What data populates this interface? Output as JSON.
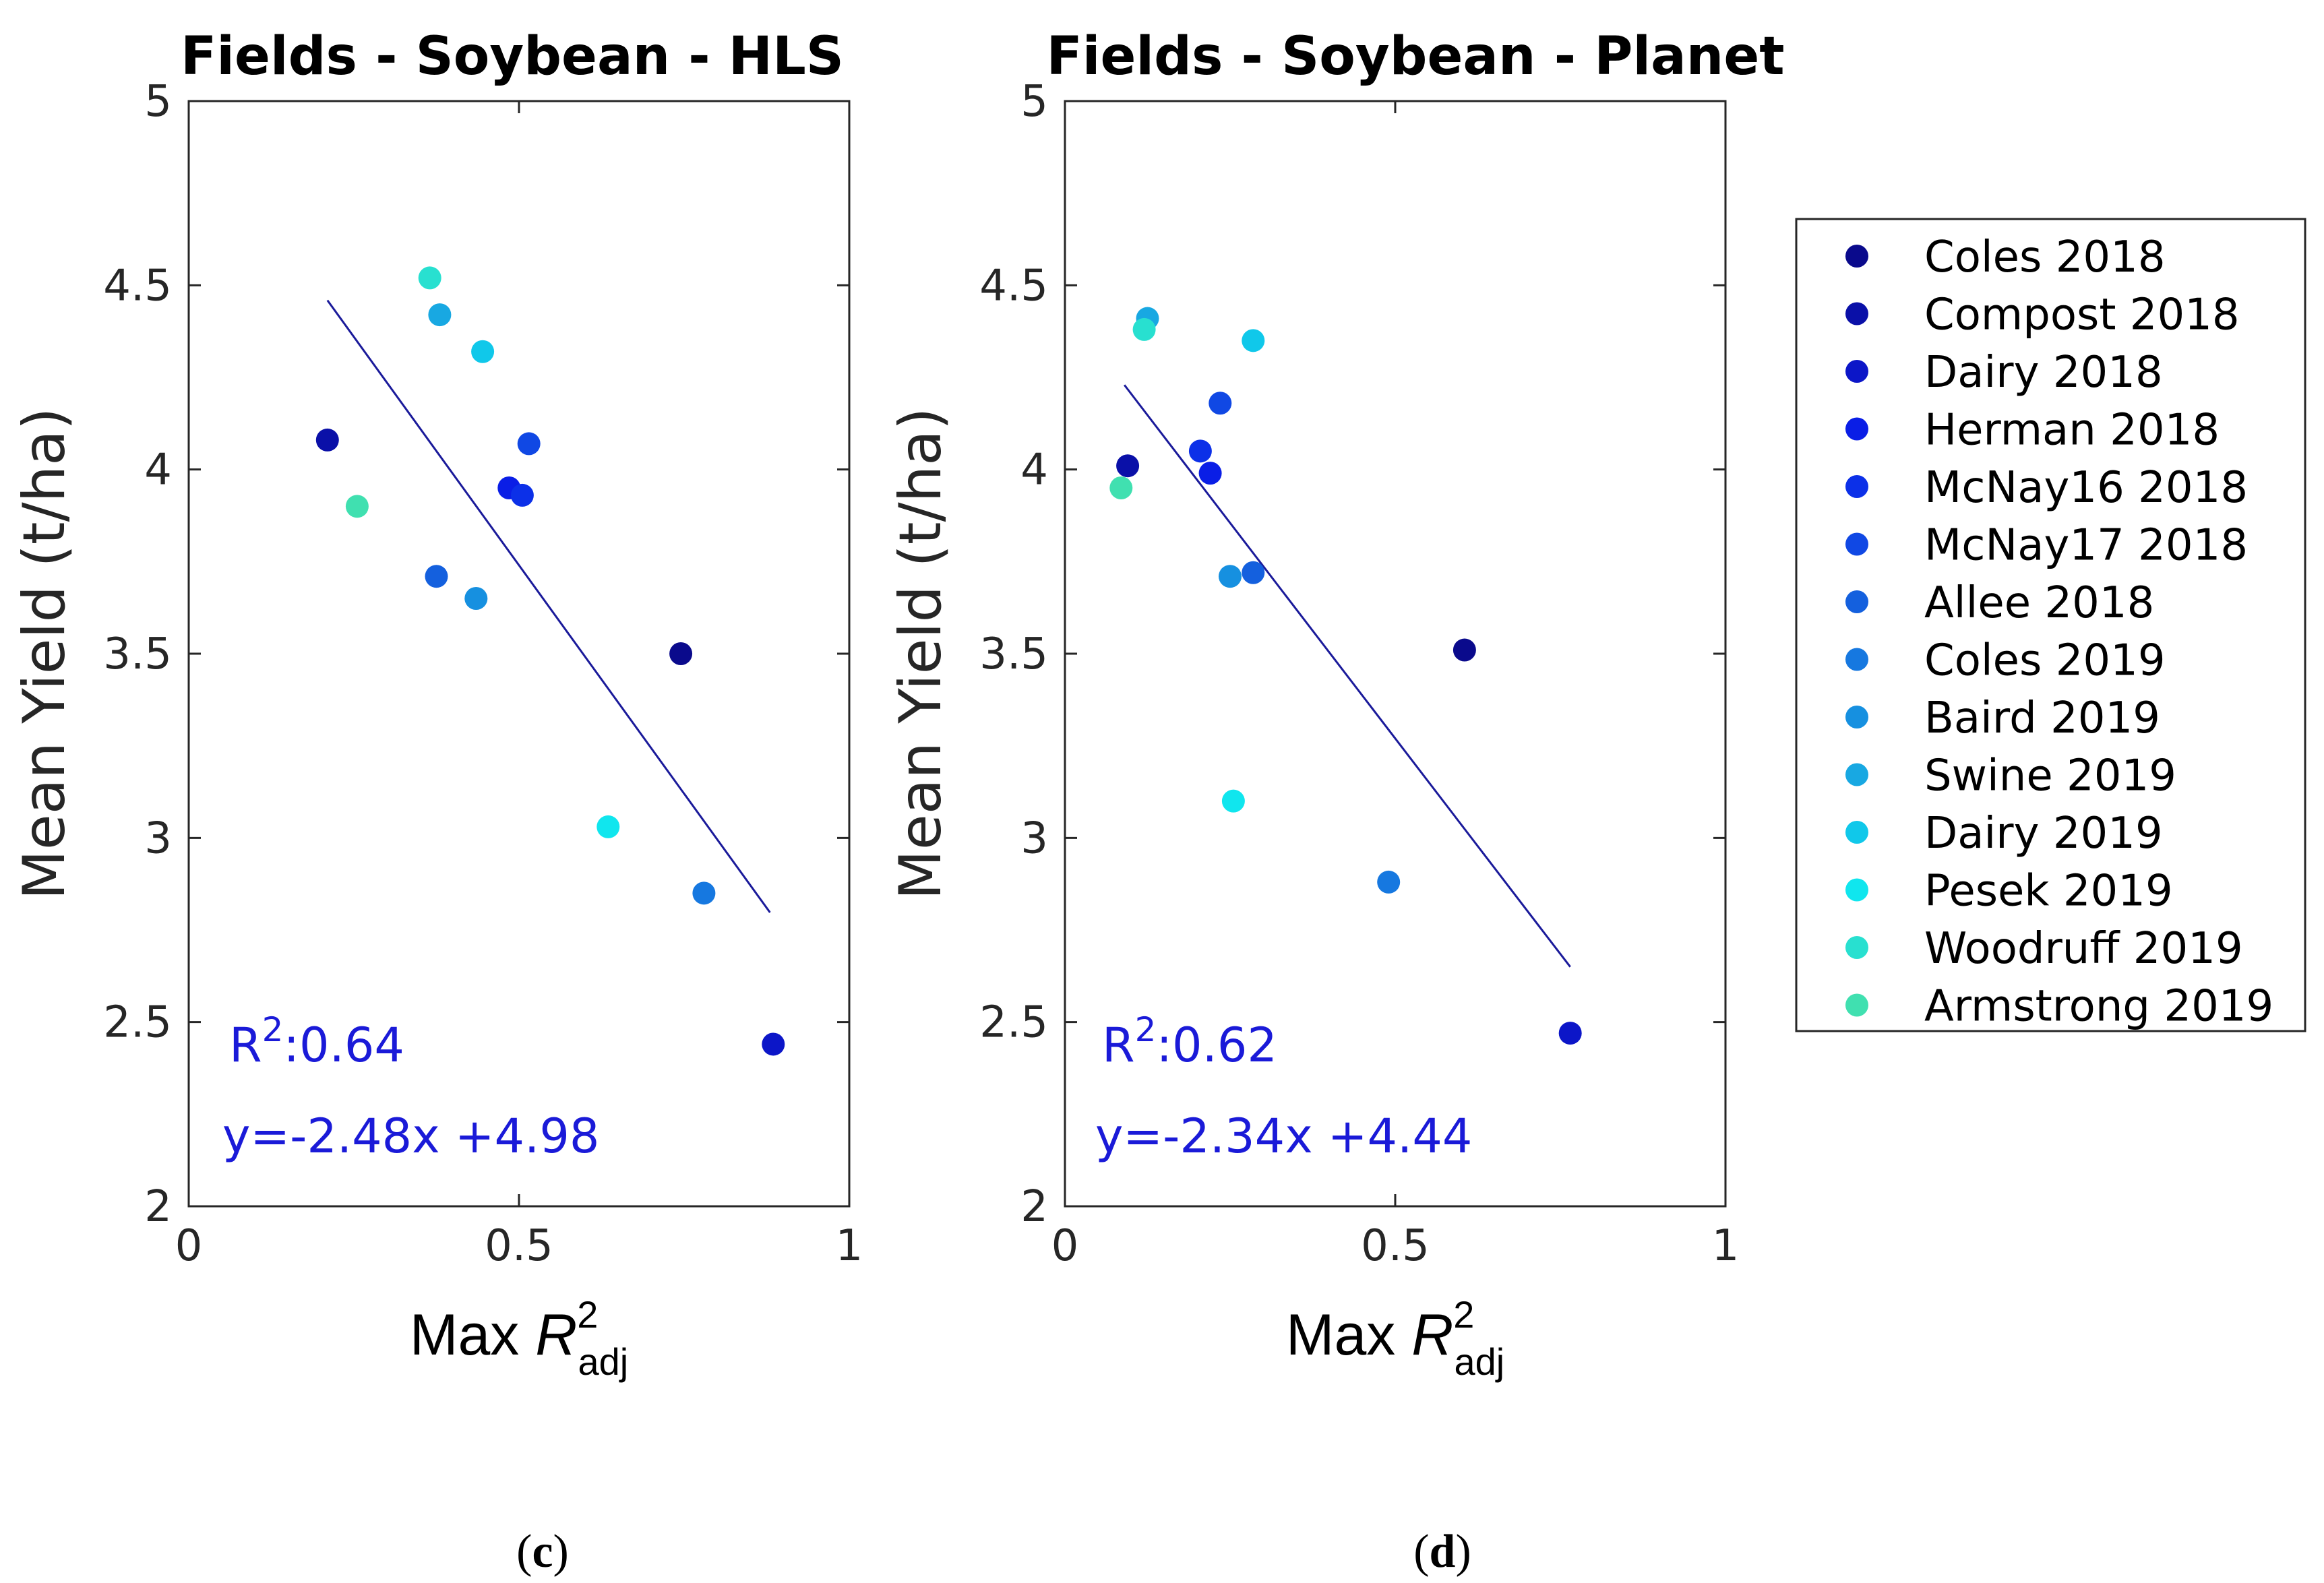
{
  "chart_data": [
    {
      "type": "scatter",
      "title": "Fields - Soybean - HLS",
      "panel_label": "c",
      "ylabel": "Mean Yield (t/ha)",
      "xlabel": "Max R2adj",
      "xlim": [
        0,
        1
      ],
      "ylim": [
        2,
        5
      ],
      "xticks": [
        "0",
        "0.5",
        "1"
      ],
      "yticks": [
        "2",
        "2.5",
        "3",
        "3.5",
        "4",
        "4.5",
        "5"
      ],
      "r2_text": "0.64",
      "equation": "y=-2.48x +4.98",
      "fit": {
        "slope": -2.48,
        "intercept": 4.98,
        "x_range": [
          0.21,
          0.88
        ]
      },
      "points": [
        {
          "series": "Coles 2018",
          "x": 0.745,
          "y": 3.5
        },
        {
          "series": "Compost 2018",
          "x": 0.21,
          "y": 4.08
        },
        {
          "series": "Dairy 2018",
          "x": 0.885,
          "y": 2.44
        },
        {
          "series": "Herman 2018",
          "x": 0.485,
          "y": 3.95
        },
        {
          "series": "McNay16 2018",
          "x": 0.505,
          "y": 3.93
        },
        {
          "series": "McNay17 2018",
          "x": 0.515,
          "y": 4.07
        },
        {
          "series": "Allee 2018",
          "x": 0.375,
          "y": 3.71
        },
        {
          "series": "Coles 2019",
          "x": 0.78,
          "y": 2.85
        },
        {
          "series": "Baird 2019",
          "x": 0.435,
          "y": 3.65
        },
        {
          "series": "Swine 2019",
          "x": 0.38,
          "y": 4.42
        },
        {
          "series": "Dairy 2019",
          "x": 0.445,
          "y": 4.32
        },
        {
          "series": "Pesek 2019",
          "x": 0.635,
          "y": 3.03
        },
        {
          "series": "Woodruff 2019",
          "x": 0.365,
          "y": 4.52
        },
        {
          "series": "Armstrong 2019",
          "x": 0.255,
          "y": 3.9
        }
      ]
    },
    {
      "type": "scatter",
      "title": "Fields - Soybean - Planet",
      "panel_label": "d",
      "ylabel": "Mean Yield (t/ha)",
      "xlabel": "Max R2adj",
      "xlim": [
        0,
        1
      ],
      "ylim": [
        2,
        5
      ],
      "xticks": [
        "0",
        "0.5",
        "1"
      ],
      "yticks": [
        "2",
        "2.5",
        "3",
        "3.5",
        "4",
        "4.5",
        "5"
      ],
      "r2_text": "0.62",
      "equation": "y=-2.34x +4.44",
      "fit": {
        "slope": -2.34,
        "intercept": 4.44,
        "x_range": [
          0.09,
          0.765
        ]
      },
      "points": [
        {
          "series": "Coles 2018",
          "x": 0.605,
          "y": 3.51
        },
        {
          "series": "Compost 2018",
          "x": 0.095,
          "y": 4.01
        },
        {
          "series": "Dairy 2018",
          "x": 0.765,
          "y": 2.47
        },
        {
          "series": "Herman 2018",
          "x": 0.22,
          "y": 3.99
        },
        {
          "series": "McNay16 2018",
          "x": 0.205,
          "y": 4.05
        },
        {
          "series": "McNay17 2018",
          "x": 0.235,
          "y": 4.18
        },
        {
          "series": "Allee 2018",
          "x": 0.285,
          "y": 3.72
        },
        {
          "series": "Coles 2019",
          "x": 0.49,
          "y": 2.88
        },
        {
          "series": "Baird 2019",
          "x": 0.25,
          "y": 3.71
        },
        {
          "series": "Swine 2019",
          "x": 0.125,
          "y": 4.41
        },
        {
          "series": "Dairy 2019",
          "x": 0.285,
          "y": 4.35
        },
        {
          "series": "Pesek 2019",
          "x": 0.255,
          "y": 3.1
        },
        {
          "series": "Woodruff 2019",
          "x": 0.12,
          "y": 4.38
        },
        {
          "series": "Armstrong 2019",
          "x": 0.085,
          "y": 3.95
        }
      ]
    }
  ],
  "legend": [
    {
      "label": "Coles 2018",
      "color": "#0a0a8c"
    },
    {
      "label": "Compost 2018",
      "color": "#0a10a8"
    },
    {
      "label": "Dairy 2018",
      "color": "#0c16c8"
    },
    {
      "label": "Herman 2018",
      "color": "#0a1ee6"
    },
    {
      "label": "McNay16 2018",
      "color": "#0c30e8"
    },
    {
      "label": "McNay17 2018",
      "color": "#1048e4"
    },
    {
      "label": "Allee 2018",
      "color": "#1460de"
    },
    {
      "label": "Coles 2019",
      "color": "#1678e0"
    },
    {
      "label": "Baird 2019",
      "color": "#1690e0"
    },
    {
      "label": "Swine 2019",
      "color": "#18a8e2"
    },
    {
      "label": "Dairy 2019",
      "color": "#10c8ea"
    },
    {
      "label": "Pesek 2019",
      "color": "#10e6ee"
    },
    {
      "label": "Woodruff 2019",
      "color": "#28e0d0"
    },
    {
      "label": "Armstrong 2019",
      "color": "#40e0b0"
    }
  ],
  "labels": {
    "r2_prefix": "R",
    "r2_sup": "2",
    "r2_colon": ":",
    "xlabel_max": "Max ",
    "xlabel_r": "R",
    "xlabel_sup": "2",
    "xlabel_sub": "adj",
    "caption_open": "(",
    "caption_close": ")"
  },
  "colors": {
    "fit_line": "#1a1a9a",
    "annotation": "#1a1ad8"
  }
}
